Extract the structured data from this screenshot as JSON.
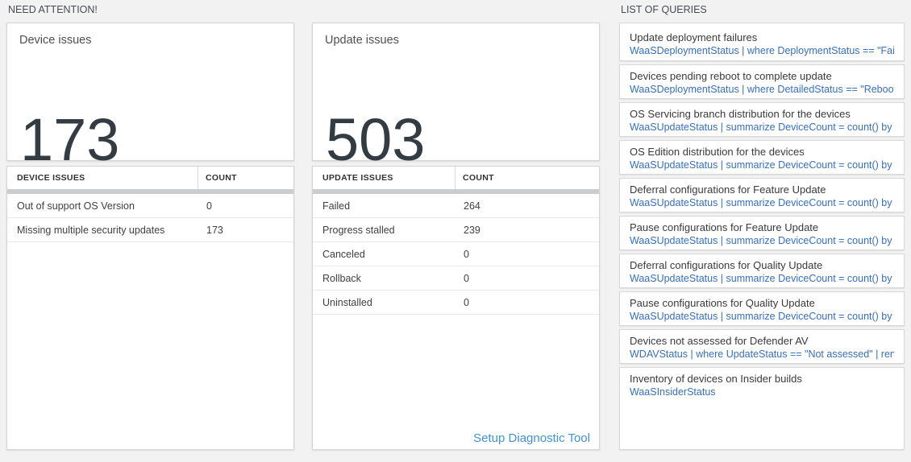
{
  "sections": {
    "need_attention": "NEED ATTENTION!",
    "list_of_queries": "LIST OF QUERIES"
  },
  "device_issues": {
    "title": "Device issues",
    "big_number": "173",
    "table": {
      "headers": [
        "DEVICE ISSUES",
        "COUNT"
      ],
      "rows": [
        {
          "name": "Out of support OS Version",
          "count": "0"
        },
        {
          "name": "Missing multiple security updates",
          "count": "173"
        }
      ]
    }
  },
  "update_issues": {
    "title": "Update issues",
    "big_number": "503",
    "table": {
      "headers": [
        "UPDATE ISSUES",
        "COUNT"
      ],
      "rows": [
        {
          "name": "Failed",
          "count": "264"
        },
        {
          "name": "Progress stalled",
          "count": "239"
        },
        {
          "name": "Canceled",
          "count": "0"
        },
        {
          "name": "Rollback",
          "count": "0"
        },
        {
          "name": "Uninstalled",
          "count": "0"
        }
      ]
    },
    "setup_link": "Setup Diagnostic Tool"
  },
  "queries": [
    {
      "title": "Update deployment failures",
      "query": "WaaSDeploymentStatus | where DeploymentStatus == \"Failed\" |..."
    },
    {
      "title": "Devices pending reboot to complete update",
      "query": "WaaSDeploymentStatus | where DetailedStatus == \"Reboot pend..."
    },
    {
      "title": "OS Servicing branch distribution for the devices",
      "query": "WaaSUpdateStatus | summarize DeviceCount = count() by OSSer..."
    },
    {
      "title": "OS Edition distribution for the devices",
      "query": "WaaSUpdateStatus | summarize DeviceCount = count() by OSEdit..."
    },
    {
      "title": "Deferral configurations for Feature Update",
      "query": "WaaSUpdateStatus | summarize DeviceCount = count() by Featur..."
    },
    {
      "title": "Pause configurations for Feature Update",
      "query": "WaaSUpdateStatus | summarize DeviceCount = count() by Featur..."
    },
    {
      "title": "Deferral configurations for Quality Update",
      "query": "WaaSUpdateStatus | summarize DeviceCount = count() by Qualit..."
    },
    {
      "title": "Pause configurations for Quality Update",
      "query": "WaaSUpdateStatus | summarize DeviceCount = count() by Qualit..."
    },
    {
      "title": "Devices not assessed for Defender AV",
      "query": "WDAVStatus | where UpdateStatus == \"Not assessed\" | render ta..."
    },
    {
      "title": "Inventory of devices on Insider builds",
      "query": "WaaSInsiderStatus"
    }
  ],
  "colors": {
    "page_background": "#f2f2f2",
    "card_background": "#ffffff",
    "card_border": "#d4d4d4",
    "big_number_text": "#333b43",
    "scrollbar_gray": "#c9cdd0",
    "query_link_blue": "#366fc0",
    "setup_link_blue": "#4191d7"
  }
}
